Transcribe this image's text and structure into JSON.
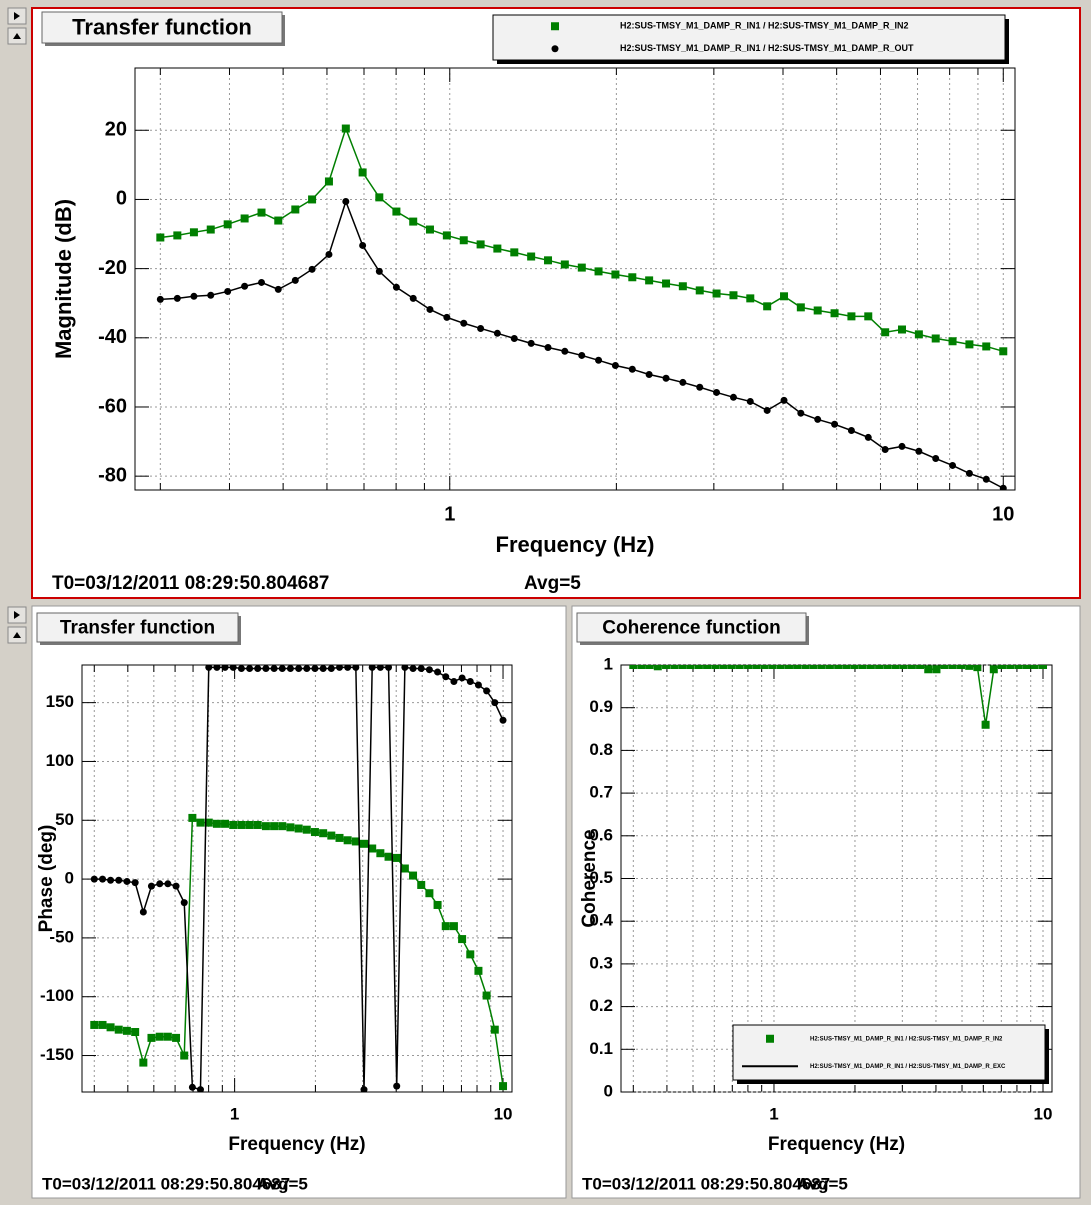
{
  "chart_data": [
    {
      "type": "line",
      "title": "Transfer function",
      "xlabel": "Frequency (Hz)",
      "ylabel": "Magnitude (dB)",
      "xscale": "log",
      "grid": true,
      "xlim": [
        0.27,
        10.5
      ],
      "xticks": [
        1,
        10
      ],
      "xminor": [
        0.3,
        0.4,
        0.5,
        0.6,
        0.7,
        0.8,
        0.9,
        2,
        3,
        4,
        5,
        6,
        7,
        8,
        9
      ],
      "ylim": [
        -84,
        38
      ],
      "yticks": [
        -80,
        -60,
        -40,
        -20,
        0,
        20
      ],
      "legend": "top-right",
      "x": [
        0.3,
        0.322,
        0.345,
        0.37,
        0.397,
        0.426,
        0.457,
        0.49,
        0.526,
        0.564,
        0.605,
        0.649,
        0.696,
        0.746,
        0.801,
        0.859,
        0.921,
        0.988,
        1.06,
        1.137,
        1.219,
        1.308,
        1.403,
        1.505,
        1.614,
        1.732,
        1.857,
        1.992,
        2.137,
        2.292,
        2.459,
        2.637,
        2.829,
        3.034,
        3.255,
        3.491,
        3.745,
        4.017,
        4.308,
        4.621,
        4.957,
        5.317,
        5.703,
        6.118,
        6.562,
        7.039,
        7.55,
        8.098,
        8.686,
        9.317,
        10
      ],
      "series": [
        {
          "name": "H2:SUS-TMSY_M1_DAMP_R_IN1 / H2:SUS-TMSY_M1_DAMP_R_IN2",
          "color": "#007f00",
          "marker": "square",
          "values": [
            -11,
            -10.4,
            -9.5,
            -8.7,
            -7.2,
            -5.5,
            -3.8,
            -6.1,
            -2.9,
            0,
            5.2,
            20.5,
            7.8,
            0.6,
            -3.5,
            -6.4,
            -8.7,
            -10.4,
            -11.8,
            -13,
            -14.2,
            -15.3,
            -16.5,
            -17.6,
            -18.8,
            -19.7,
            -20.8,
            -21.7,
            -22.5,
            -23.4,
            -24.3,
            -25.1,
            -26.3,
            -27.2,
            -27.7,
            -28.6,
            -30.9,
            -28,
            -31.2,
            -32.1,
            -32.9,
            -33.8,
            -33.8,
            -38.4,
            -37.6,
            -39,
            -40.2,
            -41,
            -41.9,
            -42.5,
            -43.9
          ]
        },
        {
          "name": "H2:SUS-TMSY_M1_DAMP_R_IN1 / H2:SUS-TMSY_M1_DAMP_R_OUT",
          "color": "#000000",
          "marker": "circle",
          "values": [
            -28.9,
            -28.6,
            -28,
            -27.7,
            -26.6,
            -25.1,
            -24,
            -26,
            -23.4,
            -20.2,
            -15.9,
            -0.6,
            -13.3,
            -20.8,
            -25.4,
            -28.6,
            -31.8,
            -34.1,
            -35.8,
            -37.3,
            -38.7,
            -40.2,
            -41.6,
            -42.8,
            -43.9,
            -45.1,
            -46.5,
            -48,
            -49.1,
            -50.6,
            -51.7,
            -52.9,
            -54.3,
            -55.8,
            -57.2,
            -58.4,
            -61,
            -58.1,
            -61.8,
            -63.6,
            -65,
            -66.8,
            -68.8,
            -72.3,
            -71.4,
            -72.8,
            -74.9,
            -76.9,
            -79.2,
            -80.9,
            -83.5
          ]
        }
      ],
      "t0": "T0=03/12/2011 08:29:50.804687",
      "avg": "Avg=5"
    },
    {
      "type": "line",
      "title": "Transfer function",
      "xlabel": "Frequency (Hz)",
      "ylabel": "Phase (deg)",
      "xscale": "log",
      "grid": true,
      "xlim": [
        0.27,
        10.8
      ],
      "xticks": [
        1,
        10
      ],
      "xminor": [
        0.3,
        0.4,
        0.5,
        0.6,
        0.7,
        0.8,
        0.9,
        2,
        3,
        4,
        5,
        6,
        7,
        8,
        9
      ],
      "ylim": [
        -181,
        182
      ],
      "yticks": [
        -150,
        -100,
        -50,
        0,
        50,
        100,
        150
      ],
      "x": [
        0.3,
        0.322,
        0.345,
        0.37,
        0.397,
        0.426,
        0.457,
        0.49,
        0.526,
        0.564,
        0.605,
        0.649,
        0.696,
        0.746,
        0.801,
        0.859,
        0.921,
        0.988,
        1.06,
        1.137,
        1.219,
        1.308,
        1.403,
        1.505,
        1.614,
        1.732,
        1.857,
        1.992,
        2.137,
        2.292,
        2.459,
        2.637,
        2.829,
        3.034,
        3.255,
        3.491,
        3.745,
        4.017,
        4.308,
        4.621,
        4.957,
        5.317,
        5.703,
        6.118,
        6.562,
        7.039,
        7.55,
        8.098,
        8.686,
        9.317,
        10
      ],
      "series": [
        {
          "color": "#007f00",
          "marker": "square",
          "values": [
            -124,
            -124,
            -126,
            -128,
            -129,
            -130,
            -156,
            -135,
            -134,
            -134,
            -135,
            -150,
            52,
            48,
            48,
            47,
            47,
            46,
            46,
            46,
            46,
            45,
            45,
            45,
            44,
            43,
            42,
            40,
            39,
            37,
            35,
            33,
            32,
            30,
            26,
            22,
            19,
            18,
            9,
            3,
            -5,
            -12,
            -22,
            -40,
            -40,
            -51,
            -64,
            -78,
            -99,
            -128,
            -176
          ]
        },
        {
          "color": "#000000",
          "marker": "circle",
          "values": [
            0,
            0,
            -1,
            -1,
            -2,
            -3,
            -28,
            -6,
            -4,
            -4,
            -6,
            -20,
            -177,
            -179,
            180,
            180,
            180,
            180,
            179,
            179,
            179,
            179,
            179,
            179,
            179,
            179,
            179,
            179,
            179,
            179,
            180,
            180,
            180,
            -179,
            180,
            180,
            180,
            -176,
            180,
            179,
            179,
            178,
            176,
            172,
            168,
            171,
            168,
            165,
            160,
            150,
            135
          ]
        }
      ],
      "t0": "T0=03/12/2011 08:29:50.804687",
      "avg": "Avg=5"
    },
    {
      "type": "line",
      "title": "Coherence function",
      "xlabel": "Frequency (Hz)",
      "ylabel": "Coherence",
      "xscale": "log",
      "grid": true,
      "xlim": [
        0.27,
        10.8
      ],
      "xticks": [
        1,
        10
      ],
      "xminor": [
        0.3,
        0.4,
        0.5,
        0.6,
        0.7,
        0.8,
        0.9,
        2,
        3,
        4,
        5,
        6,
        7,
        8,
        9
      ],
      "ylim": [
        0,
        1
      ],
      "yticks": [
        0,
        0.1,
        0.2,
        0.3,
        0.4,
        0.5,
        0.6,
        0.7,
        0.8,
        0.9,
        1
      ],
      "legend": "bottom-right",
      "x": [
        0.3,
        0.322,
        0.345,
        0.37,
        0.397,
        0.426,
        0.457,
        0.49,
        0.526,
        0.564,
        0.605,
        0.649,
        0.696,
        0.746,
        0.801,
        0.859,
        0.921,
        0.988,
        1.06,
        1.137,
        1.219,
        1.308,
        1.403,
        1.505,
        1.614,
        1.732,
        1.857,
        1.992,
        2.137,
        2.292,
        2.459,
        2.637,
        2.829,
        3.034,
        3.255,
        3.491,
        3.745,
        4.017,
        4.308,
        4.621,
        4.957,
        5.317,
        5.703,
        6.118,
        6.562,
        7.039,
        7.55,
        8.098,
        8.686,
        9.317,
        10
      ],
      "series": [
        {
          "name": "H2:SUS-TMSY_M1_DAMP_R_IN1 / H2:SUS-TMSY_M1_DAMP_R_IN2",
          "color": "#007f00",
          "marker": "square",
          "values": [
            1,
            1,
            1,
            0.997,
            1,
            1,
            1,
            1,
            1,
            1,
            1,
            1,
            1,
            1,
            1,
            1,
            1,
            1,
            1,
            1,
            1,
            1,
            1,
            1,
            1,
            1,
            1,
            1,
            1,
            1,
            1,
            1,
            1,
            1,
            1,
            1,
            0.99,
            0.99,
            1,
            1,
            1,
            0.998,
            0.995,
            0.86,
            0.99,
            1,
            1,
            1,
            1,
            1,
            1
          ]
        }
      ],
      "legend_entries": [
        {
          "name": "H2:SUS-TMSY_M1_DAMP_R_IN1 / H2:SUS-TMSY_M1_DAMP_R_EXC",
          "color": "#000000",
          "marker": "line"
        }
      ],
      "t0": "T0=03/12/2011 08:29:50.804687",
      "avg": "Avg=5"
    }
  ]
}
